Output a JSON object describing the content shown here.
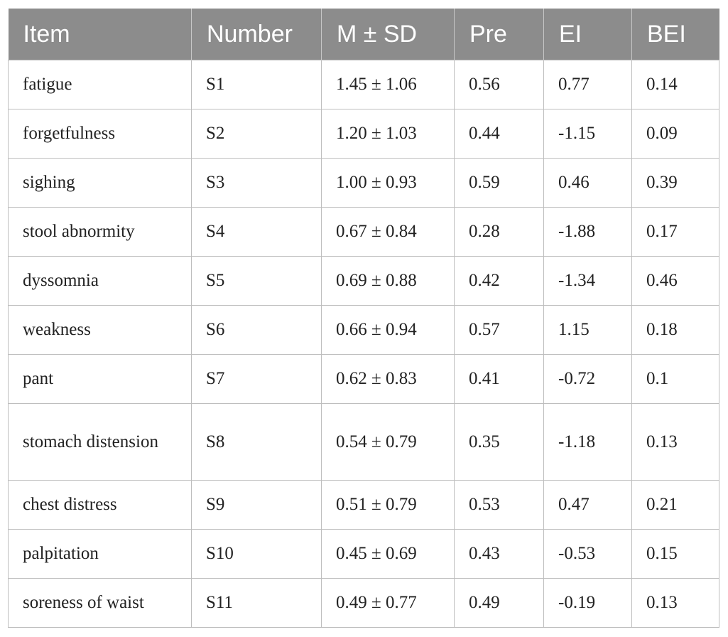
{
  "table": {
    "headers": [
      "Item",
      "Number",
      "M ± SD",
      "Pre",
      "EI",
      "BEI"
    ],
    "rows": [
      [
        "fatigue",
        "S1",
        "1.45 ± 1.06",
        "0.56",
        "0.77",
        "0.14"
      ],
      [
        "forgetfulness",
        "S2",
        "1.20 ± 1.03",
        "0.44",
        "-1.15",
        "0.09"
      ],
      [
        "sighing",
        "S3",
        "1.00 ± 0.93",
        "0.59",
        "0.46",
        "0.39"
      ],
      [
        "stool abnormity",
        "S4",
        "0.67 ± 0.84",
        "0.28",
        "-1.88",
        "0.17"
      ],
      [
        "dyssomnia",
        "S5",
        "0.69 ± 0.88",
        "0.42",
        "-1.34",
        "0.46"
      ],
      [
        "weakness",
        "S6",
        "0.66 ± 0.94",
        "0.57",
        "1.15",
        "0.18"
      ],
      [
        "pant",
        "S7",
        "0.62 ± 0.83",
        "0.41",
        "-0.72",
        "0.1"
      ],
      [
        "stomach distension",
        "S8",
        "0.54 ± 0.79",
        "0.35",
        "-1.18",
        "0.13"
      ],
      [
        "chest distress",
        "S9",
        "0.51 ± 0.79",
        "0.53",
        "0.47",
        "0.21"
      ],
      [
        "palpitation",
        "S10",
        "0.45 ± 0.69",
        "0.43",
        "-0.53",
        "0.15"
      ],
      [
        "soreness of waist",
        "S11",
        "0.49 ± 0.77",
        "0.49",
        "-0.19",
        "0.13"
      ]
    ]
  }
}
